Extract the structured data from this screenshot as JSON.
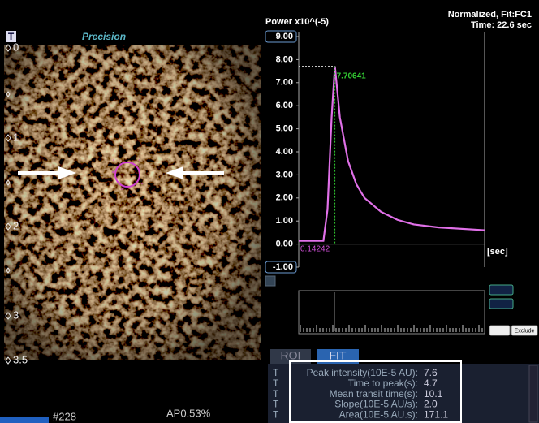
{
  "toolbar": {
    "t_icon": "T",
    "mode": "Precision"
  },
  "image": {
    "depth_labels": [
      "0",
      "1",
      "2",
      "3",
      "3.5"
    ],
    "frame": "#228",
    "ap": "AP0.53%"
  },
  "chart_data": {
    "type": "line",
    "title": "Power x10^(-5)",
    "header_lines": [
      "Normalized, Fit:FC1",
      "Time: 22.6 sec"
    ],
    "x_label": "[sec]",
    "xlim": [
      0,
      22.6
    ],
    "ylim": [
      -1,
      9
    ],
    "yticks": [
      {
        "value": 9,
        "label": "9.00"
      },
      {
        "value": 8,
        "label": "8.00"
      },
      {
        "value": 7,
        "label": "7.00"
      },
      {
        "value": 6,
        "label": "6.00"
      },
      {
        "value": 5,
        "label": "5.00"
      },
      {
        "value": 4,
        "label": "4.00"
      },
      {
        "value": 3,
        "label": "3.00"
      },
      {
        "value": 2,
        "label": "2.00"
      },
      {
        "value": 1,
        "label": "1.00"
      },
      {
        "value": 0,
        "label": "0.00"
      },
      {
        "value": -1,
        "label": "-1.00"
      }
    ],
    "x": [
      0,
      3.0,
      3.5,
      4.0,
      4.4,
      5.0,
      6,
      7,
      8,
      10,
      12,
      14,
      17,
      22.6
    ],
    "series": [
      {
        "color": "#e070e8",
        "values": [
          0.14,
          0.14,
          1.5,
          5.5,
          7.71,
          5.5,
          3.6,
          2.6,
          2.0,
          1.4,
          1.05,
          0.85,
          0.72,
          0.6
        ]
      }
    ],
    "peak_label": "7.70641",
    "min_label": "0.14242"
  },
  "controls": {
    "exclude": "Exclude"
  },
  "fit_panel": {
    "tabs": [
      "ROI",
      "FIT"
    ],
    "row_markers": [
      "T",
      "T",
      "T",
      "T",
      "T"
    ],
    "rows": [
      [
        "Peak intensity(10E-5 AU):",
        "7.6"
      ],
      [
        "Time to peak(s):",
        "4.7"
      ],
      [
        "Mean transit time(s):",
        "10.1"
      ],
      [
        "Slope(10E-5 AU/s):",
        "2.0"
      ],
      [
        "Area(10E-5 AU.s):",
        "171.1"
      ]
    ]
  }
}
